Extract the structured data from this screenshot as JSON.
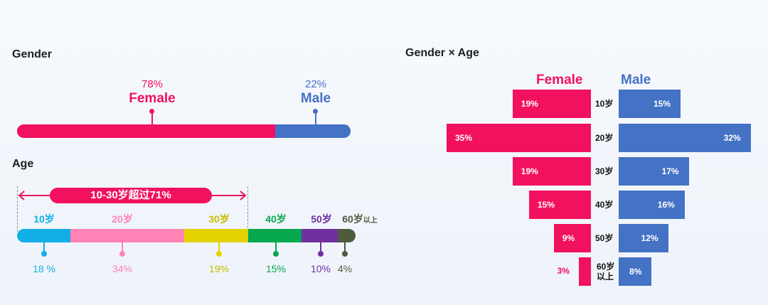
{
  "gender": {
    "title": "Gender",
    "female": {
      "pct": "78%",
      "label": "Female",
      "value": 78,
      "color": "#f2115f"
    },
    "male": {
      "pct": "22%",
      "label": "Male",
      "value": 22,
      "color": "#4472c4"
    }
  },
  "age": {
    "title": "Age",
    "banner": "10-30岁超过71%",
    "banner_color": "#f2115f",
    "segments": [
      {
        "label": "10岁",
        "pct": "18 %",
        "value": 18,
        "color": "#12aee8"
      },
      {
        "label": "20岁",
        "pct": "34%",
        "value": 34,
        "color": "#ff83b5"
      },
      {
        "label": "30岁",
        "pct": "19%",
        "value": 19,
        "color": "#e2d300"
      },
      {
        "label": "40岁",
        "pct": "15%",
        "value": 15,
        "color": "#06a74f"
      },
      {
        "label": "50岁",
        "pct": "10%",
        "value": 10,
        "color": "#7030a0"
      },
      {
        "label": "60岁",
        "label_suffix": "以上",
        "pct": "4%",
        "value": 4,
        "color": "#4f5b3f"
      }
    ]
  },
  "chart_data": {
    "type": "bar",
    "title": "Gender × Age",
    "categories": [
      "10岁",
      "20岁",
      "30岁",
      "40岁",
      "50岁",
      "60岁 以上"
    ],
    "series": [
      {
        "name": "Female",
        "values": [
          19,
          35,
          19,
          15,
          9,
          3
        ],
        "labels": [
          "19%",
          "35%",
          "19%",
          "15%",
          "9%",
          "3%"
        ],
        "color": "#f2115f"
      },
      {
        "name": "Male",
        "values": [
          15,
          32,
          17,
          16,
          12,
          8
        ],
        "labels": [
          "15%",
          "32%",
          "17%",
          "16%",
          "12%",
          "8%"
        ],
        "color": "#4472c4"
      }
    ]
  }
}
